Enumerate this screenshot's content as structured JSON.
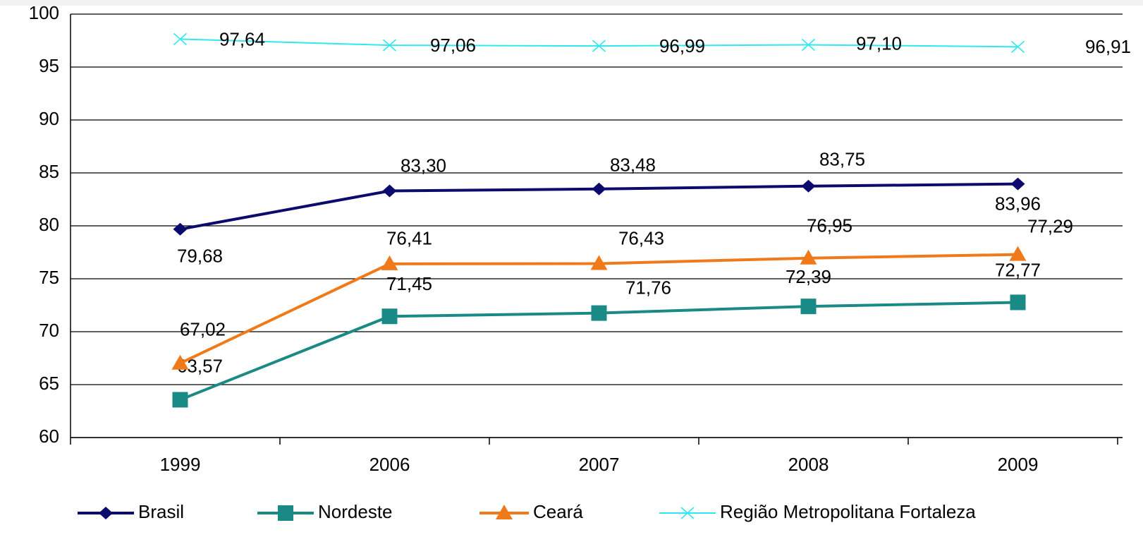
{
  "chart_data": {
    "type": "line",
    "categories": [
      "1999",
      "2006",
      "2007",
      "2008",
      "2009"
    ],
    "ylim": [
      60,
      100
    ],
    "yticks": [
      60,
      65,
      70,
      75,
      80,
      85,
      90,
      95,
      100
    ],
    "grid": true,
    "legend": "bottom",
    "series": [
      {
        "name": "Brasil",
        "color": "#0b0b6e",
        "marker": "diamond",
        "values": [
          79.68,
          83.3,
          83.48,
          83.75,
          83.96
        ],
        "value_labels": [
          "79,68",
          "83,30",
          "83,48",
          "83,75",
          "83,96"
        ]
      },
      {
        "name": "Nordeste",
        "color": "#1a8a86",
        "marker": "square",
        "values": [
          63.57,
          71.45,
          71.76,
          72.39,
          72.77
        ],
        "value_labels": [
          "63,57",
          "71,45",
          "71,76",
          "72,39",
          "72,77"
        ]
      },
      {
        "name": "Ceará",
        "color": "#f07a1a",
        "marker": "triangle",
        "values": [
          67.02,
          76.41,
          76.43,
          76.95,
          77.29
        ],
        "value_labels": [
          "67,02",
          "76,41",
          "76,43",
          "76,95",
          "77,29"
        ]
      },
      {
        "name": "Região Metropolitana Fortaleza",
        "color": "#2fe8f0",
        "marker": "x",
        "values": [
          97.64,
          97.06,
          96.99,
          97.1,
          96.91
        ],
        "value_labels": [
          "97,64",
          "97,06",
          "96,99",
          "97,10",
          "96,91"
        ]
      }
    ]
  }
}
